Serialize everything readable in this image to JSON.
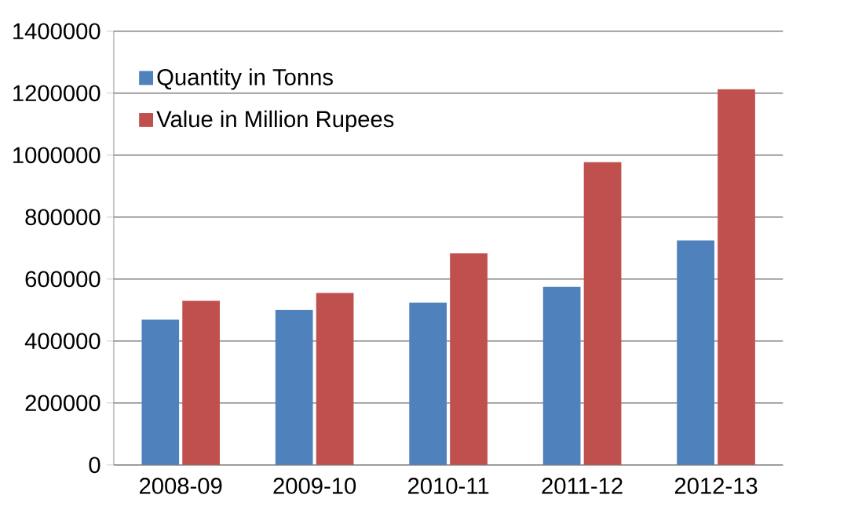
{
  "chart_data": {
    "type": "bar",
    "categories": [
      "2008-09",
      "2009-10",
      "2010-11",
      "2011-12",
      "2012-13"
    ],
    "series": [
      {
        "name": "Quantity in Tonns",
        "color": "#4f81bd",
        "values": [
          469000,
          501000,
          524000,
          575000,
          725000
        ]
      },
      {
        "name": "Value in Million Rupees",
        "color": "#c0504d",
        "values": [
          530000,
          555000,
          683000,
          977000,
          1213000
        ]
      }
    ],
    "ylim": [
      0,
      1400000
    ],
    "yticks": [
      0,
      200000,
      400000,
      600000,
      800000,
      1000000,
      1200000,
      1400000
    ],
    "grid": "y",
    "legend": "top left"
  }
}
